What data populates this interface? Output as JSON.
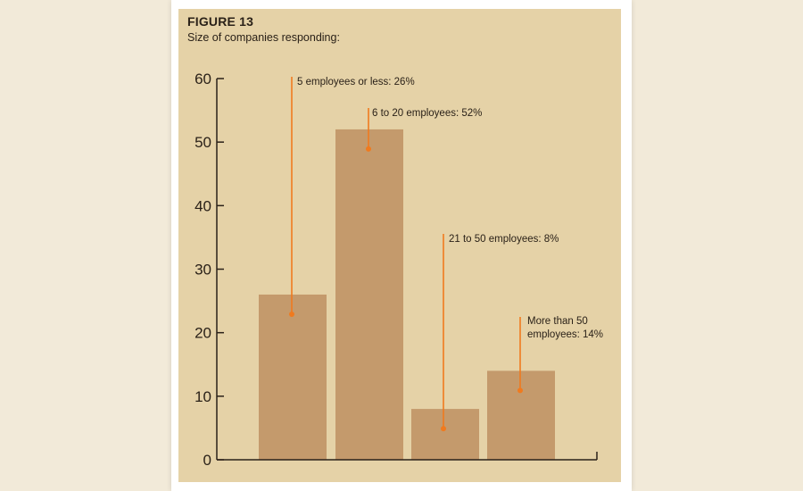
{
  "figure": {
    "label": "FIGURE 13",
    "subtitle": "Size of companies responding:"
  },
  "colors": {
    "page_background": "#f2ead9",
    "panel_background": "#e5d2a7",
    "bar_fill": "#c49a6c",
    "callout_line": "#f07a1e",
    "axis": "#2a2118",
    "text": "#2a2118"
  },
  "chart_data": {
    "type": "bar",
    "title": "FIGURE 13",
    "subtitle": "Size of companies responding:",
    "xlabel": "",
    "ylabel": "",
    "ylim": [
      0,
      60
    ],
    "yticks": [
      0,
      10,
      20,
      30,
      40,
      50,
      60
    ],
    "grid": false,
    "legend": "none",
    "categories": [
      "5 employees or less",
      "6 to 20 employees",
      "21 to 50 employees",
      "More than 50 employees"
    ],
    "values": [
      26,
      52,
      8,
      14
    ],
    "annotations": [
      {
        "lines": [
          "5 employees or less: 26%"
        ]
      },
      {
        "lines": [
          "6 to 20 employees: 52%"
        ]
      },
      {
        "lines": [
          "21 to 50 employees: 8%"
        ]
      },
      {
        "lines": [
          "More than 50",
          "employees: 14%"
        ]
      }
    ]
  }
}
